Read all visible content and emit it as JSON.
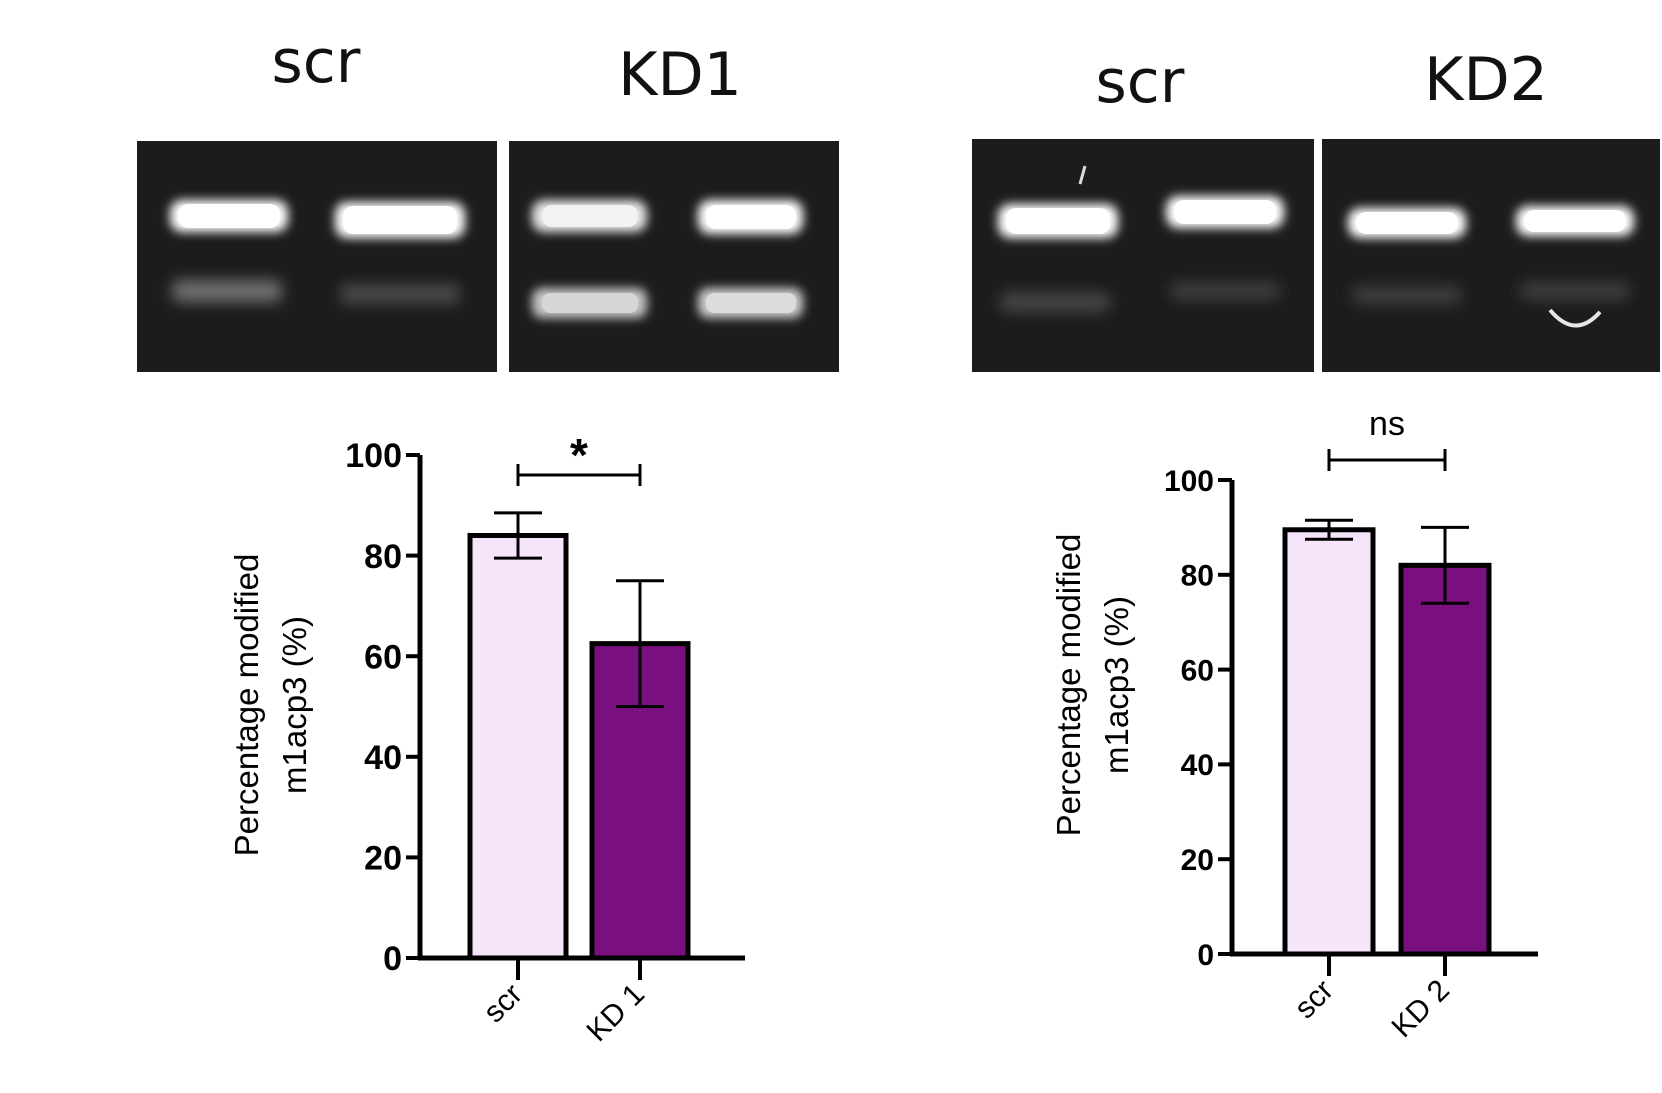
{
  "gel_labels": {
    "left": [
      "scr",
      "KD1"
    ],
    "right": [
      "scr",
      "KD2"
    ]
  },
  "colors": {
    "scr_fill": "#f6e4fa",
    "kd_fill": "#7a0f7e",
    "outline": "#000000",
    "gel_bg": "#1a1a1a",
    "band": "#ffffff"
  },
  "chart_data": [
    {
      "type": "bar",
      "categories": [
        "scr",
        "KD 1"
      ],
      "values": [
        84,
        62.5
      ],
      "error": [
        4.5,
        12.5
      ],
      "ylabel_line1": "Percentage modified",
      "ylabel_line2": "m1acp3 (%)",
      "ylim": [
        0,
        100
      ],
      "yticks": [
        0,
        20,
        40,
        60,
        80,
        100
      ],
      "significance": "*",
      "grid": false
    },
    {
      "type": "bar",
      "categories": [
        "scr",
        "KD 2"
      ],
      "values": [
        89.5,
        82
      ],
      "error": [
        2,
        8
      ],
      "ylabel_line1": "Percentage modified",
      "ylabel_line2": "m1acp3 (%)",
      "ylim": [
        0,
        100
      ],
      "yticks": [
        0,
        20,
        40,
        60,
        80,
        100
      ],
      "significance": "ns",
      "grid": false
    }
  ]
}
